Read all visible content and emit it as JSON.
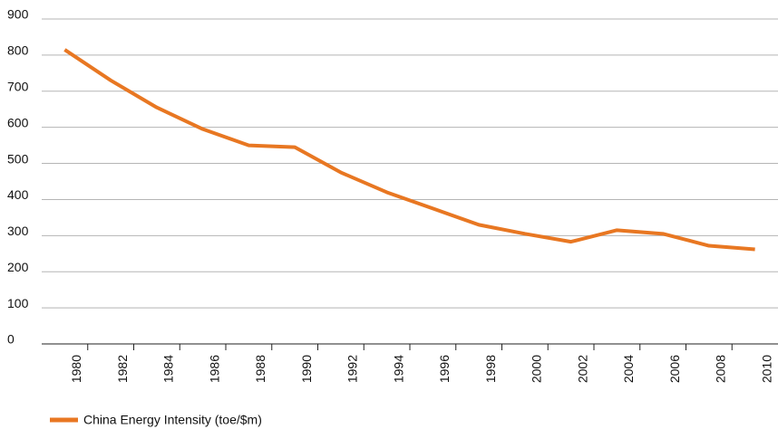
{
  "chart_data": {
    "type": "line",
    "categories": [
      "1980",
      "1982",
      "1984",
      "1986",
      "1988",
      "1990",
      "1992",
      "1994",
      "1996",
      "1998",
      "2000",
      "2002",
      "2004",
      "2006",
      "2008",
      "2010"
    ],
    "series": [
      {
        "name": "China Energy Intensity (toe/$m)",
        "color": "#e87722",
        "values": [
          815,
          730,
          655,
          595,
          550,
          545,
          475,
          420,
          375,
          330,
          305,
          283,
          315,
          305,
          272,
          262
        ]
      }
    ],
    "ylim": [
      0,
      900
    ],
    "yticks": [
      0,
      100,
      200,
      300,
      400,
      500,
      600,
      700,
      800,
      900
    ],
    "grid": true
  }
}
